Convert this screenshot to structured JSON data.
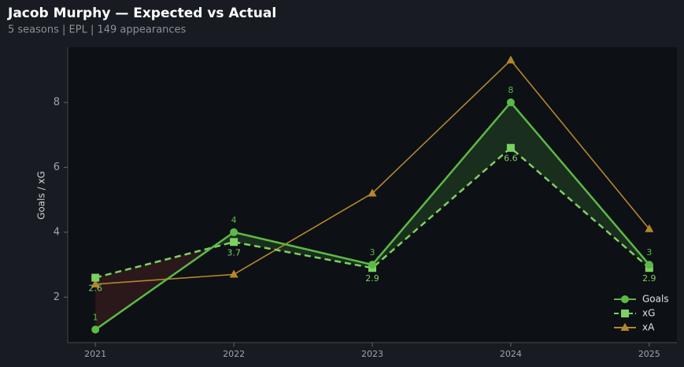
{
  "chart_data": {
    "type": "line",
    "title": "Jacob Murphy — Expected vs Actual",
    "subtitle": "5 seasons | EPL | 149 appearances",
    "y_label": "Goals / xG",
    "x": [
      2021,
      2022,
      2023,
      2024,
      2025
    ],
    "xlim": [
      2020.8,
      2025.2
    ],
    "xticks": [
      2021,
      2022,
      2023,
      2024,
      2025
    ],
    "ylim": [
      0.6,
      9.7
    ],
    "yticks": [
      2,
      4,
      6,
      8
    ],
    "legend": "lower right",
    "series": [
      {
        "name": "Goals",
        "color": "#5cb946",
        "marker": "circle",
        "dash": false,
        "show_labels": true,
        "label_pos": "above",
        "values": [
          1,
          4,
          3,
          8,
          3
        ]
      },
      {
        "name": "xG",
        "color": "#7dd062",
        "marker": "square",
        "dash": true,
        "show_labels": true,
        "label_pos": "below",
        "values": [
          2.6,
          3.7,
          2.9,
          6.6,
          2.9
        ]
      },
      {
        "name": "xA",
        "color": "#b5862b",
        "marker": "triangle",
        "dash": false,
        "show_labels": false,
        "values": [
          2.4,
          2.7,
          5.2,
          9.3,
          4.1
        ]
      }
    ]
  }
}
